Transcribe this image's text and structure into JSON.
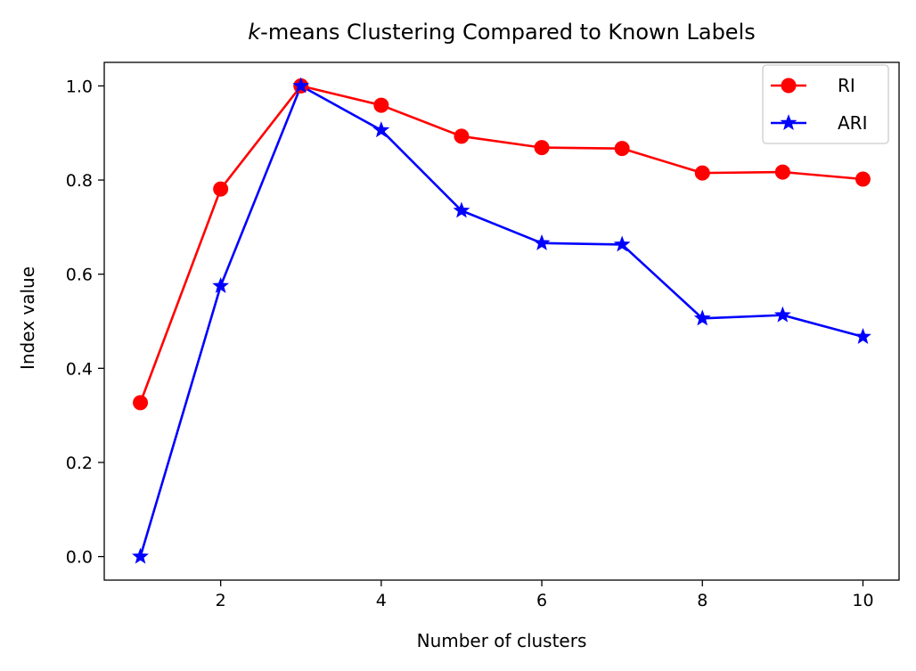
{
  "chart_data": {
    "type": "line",
    "title_italic": "k",
    "title_rest": "-means Clustering Compared to Known Labels",
    "xlabel": "Number of clusters",
    "ylabel": "Index value",
    "xlim": [
      0.55,
      10.45
    ],
    "ylim": [
      -0.05,
      1.05
    ],
    "xticks": [
      2,
      4,
      6,
      8,
      10
    ],
    "yticks": [
      0.0,
      0.2,
      0.4,
      0.6,
      0.8,
      1.0
    ],
    "xtick_labels": [
      "2",
      "4",
      "6",
      "8",
      "10"
    ],
    "ytick_labels": [
      "0.0",
      "0.2",
      "0.4",
      "0.6",
      "0.8",
      "1.0"
    ],
    "grid": false,
    "legend_position": "top-right",
    "x": [
      1,
      2,
      3,
      4,
      5,
      6,
      7,
      8,
      9,
      10
    ],
    "series": [
      {
        "name": "RI",
        "color": "#ff0000",
        "marker": "circle",
        "values": [
          0.327,
          0.781,
          1.0,
          0.959,
          0.893,
          0.869,
          0.867,
          0.815,
          0.817,
          0.802
        ]
      },
      {
        "name": "ARI",
        "color": "#0000ff",
        "marker": "star",
        "values": [
          0.0,
          0.575,
          1.0,
          0.906,
          0.735,
          0.666,
          0.663,
          0.506,
          0.513,
          0.467
        ]
      }
    ]
  }
}
